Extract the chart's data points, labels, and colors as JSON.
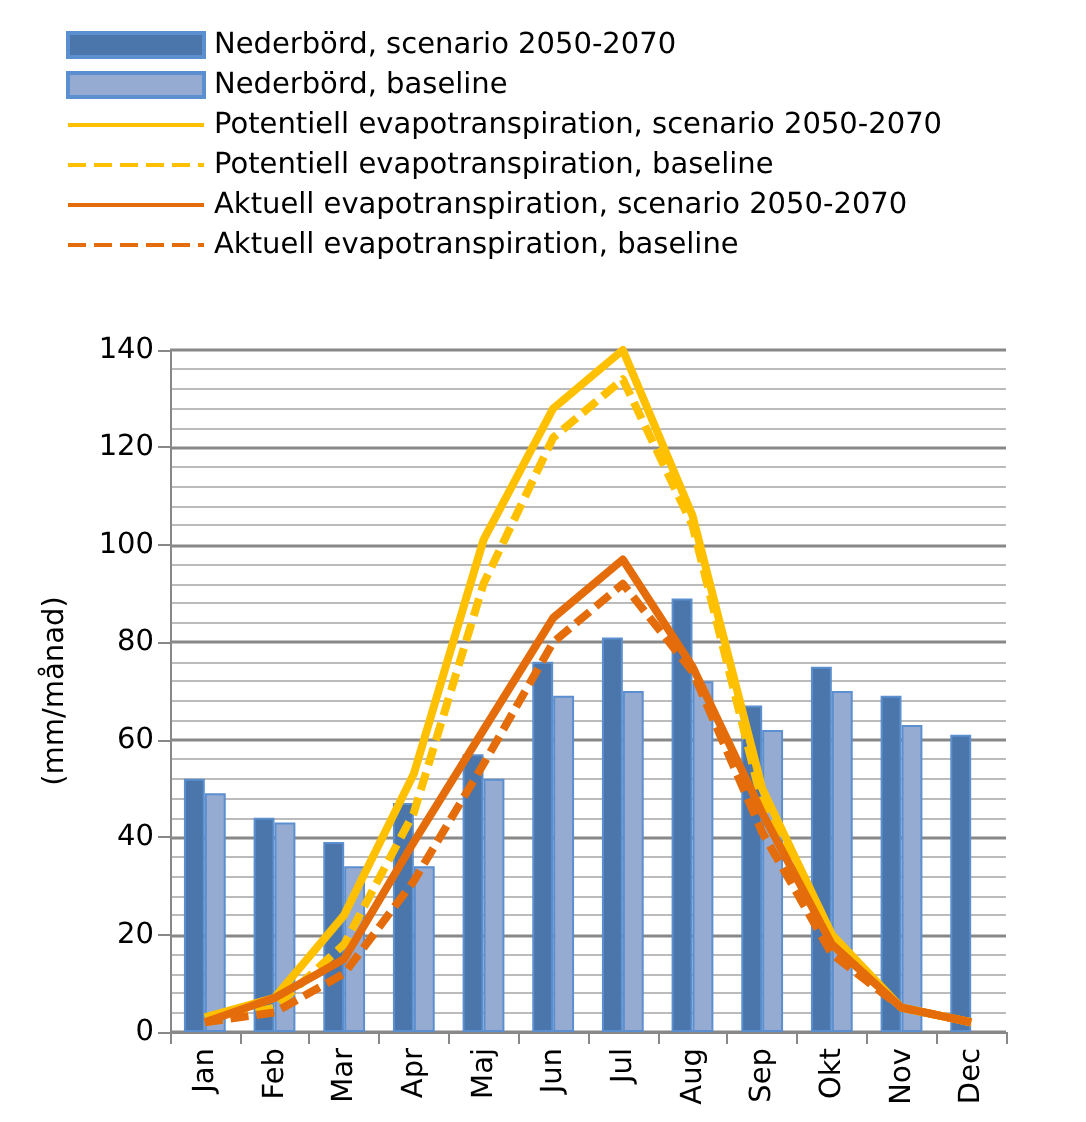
{
  "chart_data": {
    "type": "bar",
    "ylabel": "(mm/månad)",
    "categories": [
      "Jan",
      "Feb",
      "Mar",
      "Apr",
      "Maj",
      "Jun",
      "Jul",
      "Aug",
      "Sep",
      "Okt",
      "Nov",
      "Dec"
    ],
    "series": [
      {
        "name": "Nederbörd, scenario 2050-2070",
        "color": "#4a76ab",
        "values": [
          52,
          44,
          39,
          47,
          57,
          76,
          81,
          89,
          67,
          75,
          69,
          61
        ]
      },
      {
        "name": "Nederbörd, baseline",
        "color": "#95abd2",
        "values": [
          49,
          43,
          34,
          34,
          52,
          69,
          70,
          72,
          62,
          70,
          63,
          null
        ]
      },
      {
        "name": "Potentiell evapotranspiration, scenario 2050-2070",
        "type": "line",
        "line_style": "solid",
        "color": "#ffc000",
        "values": [
          3,
          7,
          24,
          53,
          101,
          128,
          140,
          106,
          50,
          20,
          5,
          2
        ]
      },
      {
        "name": "Potentiell evapotranspiration, baseline",
        "type": "line",
        "line_style": "dashed",
        "color": "#ffc000",
        "values": [
          2,
          5,
          18,
          45,
          92,
          122,
          134,
          104,
          47,
          18,
          5,
          2
        ]
      },
      {
        "name": "Aktuell evapotranspiration, scenario 2050-2070",
        "type": "line",
        "line_style": "solid",
        "color": "#e46c0a",
        "values": [
          2,
          7,
          15,
          39,
          62,
          85,
          97,
          75,
          45,
          18,
          5,
          2
        ]
      },
      {
        "name": "Aktuell evapotranspiration, baseline",
        "type": "line",
        "line_style": "dashed",
        "color": "#e46c0a",
        "values": [
          2,
          4,
          12,
          31,
          55,
          80,
          92,
          74,
          41,
          16,
          5,
          2
        ]
      }
    ],
    "ylim": [
      0,
      140
    ],
    "yticks": [
      0,
      20,
      40,
      60,
      80,
      100,
      120,
      140
    ],
    "grid": "y",
    "legend": "top left",
    "marker": "none"
  }
}
